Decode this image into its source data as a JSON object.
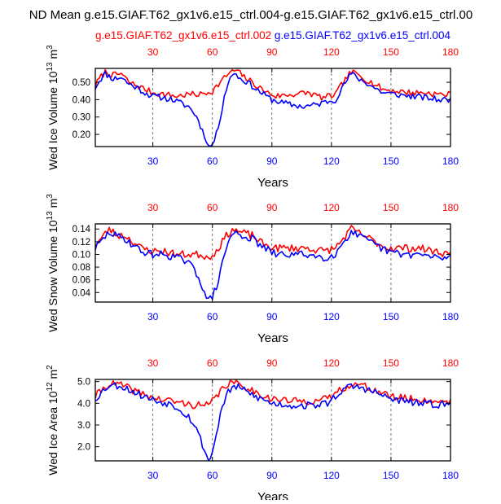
{
  "title": "ND Mean g.e15.GIAF.T62_gx1v6.e15_ctrl.004-g.e15.GIAF.T62_gx1v6.e15_ctrl.00",
  "legend": {
    "red_label": "g.e15.GIAF.T62_gx1v6.e15_ctrl.002",
    "blue_label": "g.e15.GIAF.T62_gx1v6.e15_ctrl.004"
  },
  "colors": {
    "red": "#ff0000",
    "blue": "#0000ff",
    "grid": "#555555",
    "axis": "#000000"
  },
  "chart_data": [
    {
      "type": "line",
      "name": "ice-volume",
      "ylabel": "Wed Ice Volume 10",
      "ylabel_exp": "13",
      "ylabel_unit": " m",
      "ylabel_unit_exp": "3",
      "xlabel": "Years",
      "xlim": [
        1,
        180
      ],
      "ylim": [
        0.13,
        0.58
      ],
      "xticks": [
        30,
        60,
        90,
        120,
        150,
        180
      ],
      "yticks": [
        0.2,
        0.3,
        0.4,
        0.5
      ],
      "ytick_labels": [
        "0.20",
        "0.30",
        "0.40",
        "0.50"
      ],
      "series": [
        {
          "name": "g.e15.GIAF.T62_gx1v6.e15_ctrl.002",
          "color": "#ff0000",
          "knots": [
            [
              1,
              0.48
            ],
            [
              3,
              0.52
            ],
            [
              6,
              0.56
            ],
            [
              10,
              0.54
            ],
            [
              14,
              0.55
            ],
            [
              18,
              0.5
            ],
            [
              22,
              0.48
            ],
            [
              26,
              0.46
            ],
            [
              30,
              0.44
            ],
            [
              36,
              0.43
            ],
            [
              42,
              0.42
            ],
            [
              48,
              0.43
            ],
            [
              54,
              0.43
            ],
            [
              60,
              0.45
            ],
            [
              64,
              0.5
            ],
            [
              68,
              0.55
            ],
            [
              72,
              0.57
            ],
            [
              76,
              0.53
            ],
            [
              80,
              0.5
            ],
            [
              86,
              0.45
            ],
            [
              92,
              0.42
            ],
            [
              100,
              0.43
            ],
            [
              108,
              0.44
            ],
            [
              116,
              0.41
            ],
            [
              122,
              0.43
            ],
            [
              126,
              0.5
            ],
            [
              130,
              0.56
            ],
            [
              134,
              0.54
            ],
            [
              140,
              0.5
            ],
            [
              146,
              0.46
            ],
            [
              152,
              0.45
            ],
            [
              160,
              0.44
            ],
            [
              168,
              0.44
            ],
            [
              174,
              0.43
            ],
            [
              180,
              0.43
            ]
          ],
          "noise": 0.018,
          "seed": 7
        },
        {
          "name": "g.e15.GIAF.T62_gx1v6.e15_ctrl.004",
          "color": "#0000ff",
          "knots": [
            [
              1,
              0.47
            ],
            [
              3,
              0.51
            ],
            [
              6,
              0.55
            ],
            [
              10,
              0.52
            ],
            [
              14,
              0.53
            ],
            [
              18,
              0.49
            ],
            [
              22,
              0.47
            ],
            [
              26,
              0.44
            ],
            [
              30,
              0.42
            ],
            [
              36,
              0.41
            ],
            [
              40,
              0.4
            ],
            [
              44,
              0.38
            ],
            [
              48,
              0.36
            ],
            [
              51,
              0.32
            ],
            [
              53,
              0.28
            ],
            [
              55,
              0.22
            ],
            [
              57,
              0.17
            ],
            [
              58,
              0.13
            ],
            [
              60,
              0.14
            ],
            [
              62,
              0.2
            ],
            [
              64,
              0.3
            ],
            [
              66,
              0.42
            ],
            [
              68,
              0.5
            ],
            [
              71,
              0.56
            ],
            [
              74,
              0.52
            ],
            [
              78,
              0.5
            ],
            [
              82,
              0.46
            ],
            [
              86,
              0.43
            ],
            [
              90,
              0.4
            ],
            [
              96,
              0.38
            ],
            [
              100,
              0.37
            ],
            [
              106,
              0.36
            ],
            [
              112,
              0.37
            ],
            [
              118,
              0.39
            ],
            [
              122,
              0.4
            ],
            [
              126,
              0.48
            ],
            [
              130,
              0.55
            ],
            [
              134,
              0.52
            ],
            [
              140,
              0.48
            ],
            [
              146,
              0.44
            ],
            [
              152,
              0.43
            ],
            [
              160,
              0.42
            ],
            [
              168,
              0.41
            ],
            [
              174,
              0.4
            ],
            [
              180,
              0.4
            ]
          ],
          "noise": 0.018,
          "seed": 11
        }
      ]
    },
    {
      "type": "line",
      "name": "snow-volume",
      "ylabel": "Wed Snow Volume 10",
      "ylabel_exp": "13",
      "ylabel_unit": " m",
      "ylabel_unit_exp": "3",
      "xlabel": "Years",
      "xlim": [
        1,
        180
      ],
      "ylim": [
        0.025,
        0.148
      ],
      "xticks": [
        30,
        60,
        90,
        120,
        150,
        180
      ],
      "yticks": [
        0.04,
        0.06,
        0.08,
        0.1,
        0.12,
        0.14
      ],
      "ytick_labels": [
        "0.04",
        "0.06",
        "0.08",
        "0.10",
        "0.12",
        "0.14"
      ],
      "series": [
        {
          "name": "g.e15.GIAF.T62_gx1v6.e15_ctrl.002",
          "color": "#ff0000",
          "knots": [
            [
              1,
              0.115
            ],
            [
              4,
              0.125
            ],
            [
              8,
              0.14
            ],
            [
              12,
              0.13
            ],
            [
              16,
              0.13
            ],
            [
              20,
              0.12
            ],
            [
              24,
              0.11
            ],
            [
              30,
              0.105
            ],
            [
              36,
              0.105
            ],
            [
              42,
              0.1
            ],
            [
              48,
              0.1
            ],
            [
              54,
              0.1
            ],
            [
              58,
              0.095
            ],
            [
              62,
              0.105
            ],
            [
              66,
              0.125
            ],
            [
              70,
              0.14
            ],
            [
              74,
              0.135
            ],
            [
              80,
              0.13
            ],
            [
              86,
              0.115
            ],
            [
              92,
              0.11
            ],
            [
              100,
              0.11
            ],
            [
              108,
              0.11
            ],
            [
              116,
              0.105
            ],
            [
              122,
              0.11
            ],
            [
              126,
              0.125
            ],
            [
              130,
              0.14
            ],
            [
              136,
              0.13
            ],
            [
              142,
              0.12
            ],
            [
              148,
              0.11
            ],
            [
              156,
              0.11
            ],
            [
              164,
              0.11
            ],
            [
              172,
              0.105
            ],
            [
              180,
              0.1
            ]
          ],
          "noise": 0.006,
          "seed": 23
        },
        {
          "name": "g.e15.GIAF.T62_gx1v6.e15_ctrl.004",
          "color": "#0000ff",
          "knots": [
            [
              1,
              0.11
            ],
            [
              4,
              0.12
            ],
            [
              8,
              0.135
            ],
            [
              12,
              0.128
            ],
            [
              16,
              0.125
            ],
            [
              20,
              0.115
            ],
            [
              24,
              0.105
            ],
            [
              30,
              0.1
            ],
            [
              36,
              0.1
            ],
            [
              42,
              0.095
            ],
            [
              46,
              0.09
            ],
            [
              50,
              0.08
            ],
            [
              53,
              0.065
            ],
            [
              55,
              0.05
            ],
            [
              57,
              0.032
            ],
            [
              58,
              0.027
            ],
            [
              60,
              0.033
            ],
            [
              62,
              0.05
            ],
            [
              64,
              0.07
            ],
            [
              66,
              0.1
            ],
            [
              68,
              0.12
            ],
            [
              71,
              0.135
            ],
            [
              74,
              0.13
            ],
            [
              80,
              0.125
            ],
            [
              86,
              0.11
            ],
            [
              92,
              0.1
            ],
            [
              100,
              0.1
            ],
            [
              108,
              0.1
            ],
            [
              116,
              0.095
            ],
            [
              122,
              0.1
            ],
            [
              126,
              0.12
            ],
            [
              130,
              0.135
            ],
            [
              136,
              0.125
            ],
            [
              142,
              0.115
            ],
            [
              148,
              0.105
            ],
            [
              156,
              0.1
            ],
            [
              164,
              0.1
            ],
            [
              172,
              0.095
            ],
            [
              180,
              0.095
            ]
          ],
          "noise": 0.006,
          "seed": 29
        }
      ]
    },
    {
      "type": "line",
      "name": "ice-area",
      "ylabel": "Wed Ice Area 10",
      "ylabel_exp": "12",
      "ylabel_unit": " m",
      "ylabel_unit_exp": "2",
      "xlabel": "Years",
      "xlim": [
        1,
        180
      ],
      "ylim": [
        1.35,
        5.1
      ],
      "xticks": [
        30,
        60,
        90,
        120,
        150,
        180
      ],
      "yticks": [
        2.0,
        3.0,
        4.0,
        5.0
      ],
      "ytick_labels": [
        "2.0",
        "3.0",
        "4.0",
        "5.0"
      ],
      "series": [
        {
          "name": "g.e15.GIAF.T62_gx1v6.e15_ctrl.002",
          "color": "#ff0000",
          "knots": [
            [
              1,
              4.3
            ],
            [
              4,
              4.6
            ],
            [
              8,
              4.9
            ],
            [
              14,
              4.85
            ],
            [
              20,
              4.6
            ],
            [
              26,
              4.4
            ],
            [
              32,
              4.2
            ],
            [
              40,
              4.1
            ],
            [
              48,
              3.95
            ],
            [
              54,
              3.9
            ],
            [
              58,
              3.9
            ],
            [
              62,
              4.3
            ],
            [
              66,
              4.8
            ],
            [
              70,
              4.95
            ],
            [
              76,
              4.8
            ],
            [
              82,
              4.5
            ],
            [
              90,
              4.2
            ],
            [
              100,
              4.1
            ],
            [
              110,
              4.1
            ],
            [
              118,
              4.2
            ],
            [
              124,
              4.6
            ],
            [
              130,
              4.9
            ],
            [
              136,
              4.8
            ],
            [
              142,
              4.6
            ],
            [
              150,
              4.3
            ],
            [
              160,
              4.2
            ],
            [
              170,
              4.1
            ],
            [
              180,
              4.1
            ]
          ],
          "noise": 0.17,
          "seed": 41
        },
        {
          "name": "g.e15.GIAF.T62_gx1v6.e15_ctrl.004",
          "color": "#0000ff",
          "knots": [
            [
              1,
              4.2
            ],
            [
              4,
              4.5
            ],
            [
              8,
              4.85
            ],
            [
              14,
              4.8
            ],
            [
              20,
              4.55
            ],
            [
              26,
              4.3
            ],
            [
              32,
              4.1
            ],
            [
              40,
              3.95
            ],
            [
              44,
              3.7
            ],
            [
              48,
              3.4
            ],
            [
              51,
              3.0
            ],
            [
              53,
              2.6
            ],
            [
              55,
              2.1
            ],
            [
              57,
              1.6
            ],
            [
              58,
              1.4
            ],
            [
              60,
              1.7
            ],
            [
              62,
              2.6
            ],
            [
              64,
              3.5
            ],
            [
              66,
              4.1
            ],
            [
              68,
              4.5
            ],
            [
              71,
              4.8
            ],
            [
              76,
              4.6
            ],
            [
              82,
              4.3
            ],
            [
              90,
              4.0
            ],
            [
              100,
              3.9
            ],
            [
              110,
              3.9
            ],
            [
              118,
              4.0
            ],
            [
              124,
              4.5
            ],
            [
              130,
              4.8
            ],
            [
              136,
              4.7
            ],
            [
              142,
              4.5
            ],
            [
              150,
              4.2
            ],
            [
              160,
              4.05
            ],
            [
              170,
              3.95
            ],
            [
              180,
              3.95
            ]
          ],
          "noise": 0.17,
          "seed": 53
        }
      ]
    }
  ]
}
